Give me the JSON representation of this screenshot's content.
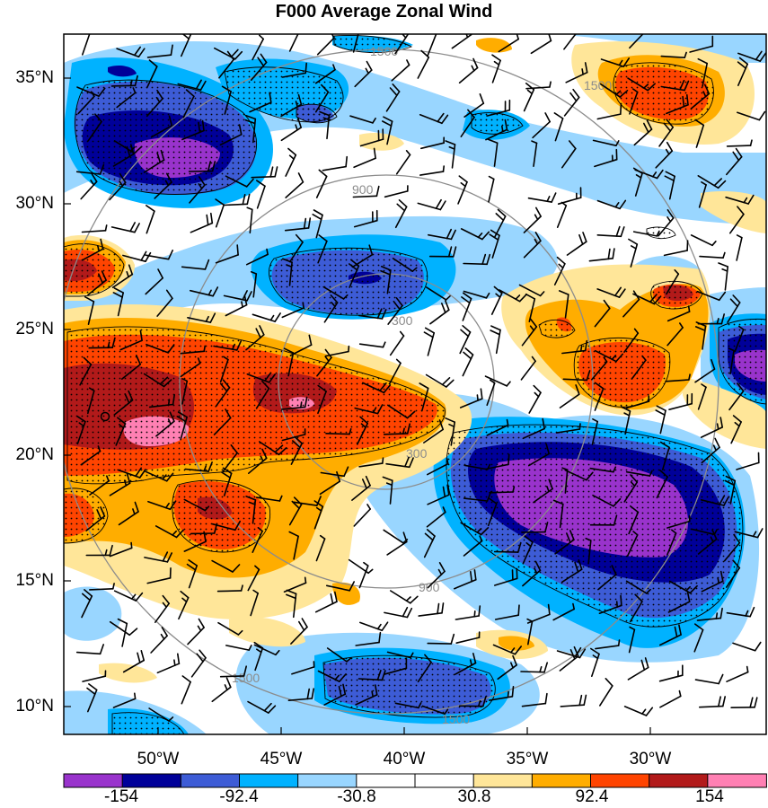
{
  "title": "F000 Average Zonal Wind",
  "latitude_labels": [
    "35°N",
    "30°N",
    "25°N",
    "20°N",
    "15°N",
    "10°N"
  ],
  "longitude_labels": [
    "50°W",
    "45°W",
    "40°W",
    "35°W",
    "30°W"
  ],
  "range_ring_labels": [
    "300",
    "900",
    "1500"
  ],
  "colorbar": {
    "colors": [
      "#9933cc",
      "#000099",
      "#3d5cd6",
      "#00b2ff",
      "#99d6ff",
      "#ffffff",
      "#ffffff",
      "#ffe699",
      "#ffad00",
      "#ff4400",
      "#b21a1a",
      "#ff80b3"
    ],
    "labels": [
      "-154",
      "-92.4",
      "-30.8",
      "30.8",
      "92.4",
      "154"
    ]
  }
}
